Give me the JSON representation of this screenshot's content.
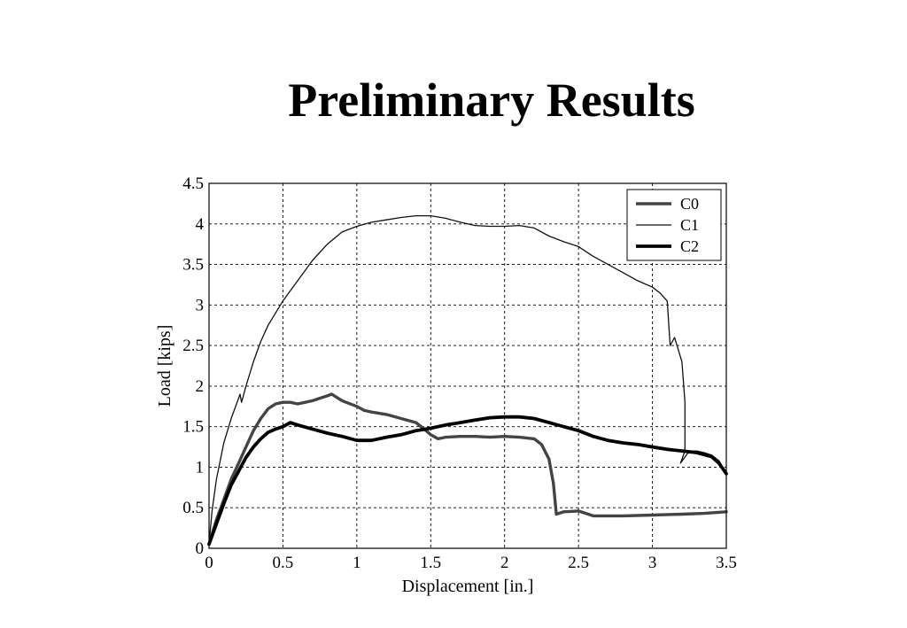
{
  "slide": {
    "title": "Preliminary Results"
  },
  "chart_data": {
    "type": "line",
    "xlabel": "Displacement [in.]",
    "ylabel": "Load [kips]",
    "xlim": [
      0,
      3.5
    ],
    "ylim": [
      0,
      4.5
    ],
    "xticks": [
      0,
      0.5,
      1,
      1.5,
      2,
      2.5,
      3,
      3.5
    ],
    "yticks": [
      0,
      0.5,
      1,
      1.5,
      2,
      2.5,
      3,
      3.5,
      4,
      4.5
    ],
    "xtick_labels": [
      "0",
      "0.5",
      "1",
      "1.5",
      "2",
      "2.5",
      "3",
      "3.5"
    ],
    "ytick_labels": [
      "0",
      "0.5",
      "1",
      "1.5",
      "2",
      "2.5",
      "3",
      "3.5",
      "4",
      "4.5"
    ],
    "grid": true,
    "legend": "top-right",
    "series": [
      {
        "name": "C0",
        "color": "#444444",
        "x": [
          0,
          0.05,
          0.1,
          0.15,
          0.2,
          0.25,
          0.3,
          0.35,
          0.4,
          0.45,
          0.5,
          0.55,
          0.6,
          0.65,
          0.7,
          0.75,
          0.8,
          0.83,
          0.9,
          1.0,
          1.05,
          1.1,
          1.2,
          1.3,
          1.4,
          1.45,
          1.5,
          1.55,
          1.6,
          1.7,
          1.8,
          1.9,
          2.0,
          2.1,
          2.2,
          2.25,
          2.3,
          2.33,
          2.35,
          2.4,
          2.5,
          2.6,
          2.7,
          2.8,
          3.0,
          3.2,
          3.35,
          3.5
        ],
        "y": [
          0.05,
          0.35,
          0.6,
          0.85,
          1.05,
          1.25,
          1.45,
          1.6,
          1.72,
          1.78,
          1.8,
          1.8,
          1.78,
          1.8,
          1.82,
          1.85,
          1.88,
          1.9,
          1.82,
          1.75,
          1.7,
          1.68,
          1.65,
          1.6,
          1.55,
          1.48,
          1.4,
          1.35,
          1.37,
          1.38,
          1.38,
          1.37,
          1.38,
          1.37,
          1.35,
          1.28,
          1.1,
          0.8,
          0.42,
          0.45,
          0.46,
          0.4,
          0.4,
          0.4,
          0.41,
          0.42,
          0.43,
          0.45
        ]
      },
      {
        "name": "C1",
        "color": "#111111",
        "x": [
          0,
          0.02,
          0.05,
          0.1,
          0.15,
          0.2,
          0.21,
          0.22,
          0.25,
          0.3,
          0.35,
          0.4,
          0.5,
          0.6,
          0.7,
          0.8,
          0.9,
          1.0,
          1.1,
          1.2,
          1.3,
          1.4,
          1.5,
          1.6,
          1.7,
          1.8,
          1.9,
          2.0,
          2.1,
          2.2,
          2.3,
          2.4,
          2.5,
          2.6,
          2.7,
          2.8,
          2.9,
          3.0,
          3.05,
          3.1,
          3.12,
          3.15,
          3.2,
          3.22,
          3.22,
          3.19,
          3.25,
          3.3,
          3.35,
          3.4,
          3.45,
          3.5
        ],
        "y": [
          0.05,
          0.45,
          0.85,
          1.3,
          1.6,
          1.85,
          1.9,
          1.8,
          2.0,
          2.3,
          2.55,
          2.75,
          3.05,
          3.3,
          3.55,
          3.75,
          3.9,
          3.97,
          4.02,
          4.05,
          4.08,
          4.1,
          4.1,
          4.07,
          4.02,
          3.98,
          3.97,
          3.97,
          3.98,
          3.95,
          3.85,
          3.78,
          3.72,
          3.6,
          3.5,
          3.4,
          3.3,
          3.22,
          3.15,
          3.05,
          2.5,
          2.6,
          2.3,
          1.8,
          1.2,
          1.05,
          1.2,
          1.2,
          1.18,
          1.15,
          1.08,
          0.92
        ]
      },
      {
        "name": "C2",
        "color": "#000000",
        "x": [
          0,
          0.05,
          0.1,
          0.15,
          0.2,
          0.25,
          0.3,
          0.35,
          0.4,
          0.45,
          0.5,
          0.55,
          0.6,
          0.7,
          0.8,
          0.9,
          1.0,
          1.1,
          1.2,
          1.3,
          1.4,
          1.5,
          1.6,
          1.7,
          1.8,
          1.9,
          2.0,
          2.1,
          2.2,
          2.3,
          2.4,
          2.5,
          2.6,
          2.7,
          2.8,
          2.9,
          3.0,
          3.1,
          3.2,
          3.3,
          3.4,
          3.45,
          3.5
        ],
        "y": [
          0.05,
          0.3,
          0.55,
          0.78,
          0.95,
          1.12,
          1.25,
          1.35,
          1.43,
          1.47,
          1.5,
          1.55,
          1.52,
          1.47,
          1.42,
          1.38,
          1.33,
          1.33,
          1.37,
          1.4,
          1.45,
          1.48,
          1.52,
          1.55,
          1.58,
          1.61,
          1.62,
          1.62,
          1.6,
          1.55,
          1.5,
          1.45,
          1.38,
          1.33,
          1.3,
          1.28,
          1.25,
          1.22,
          1.2,
          1.18,
          1.13,
          1.05,
          0.92
        ]
      }
    ]
  }
}
